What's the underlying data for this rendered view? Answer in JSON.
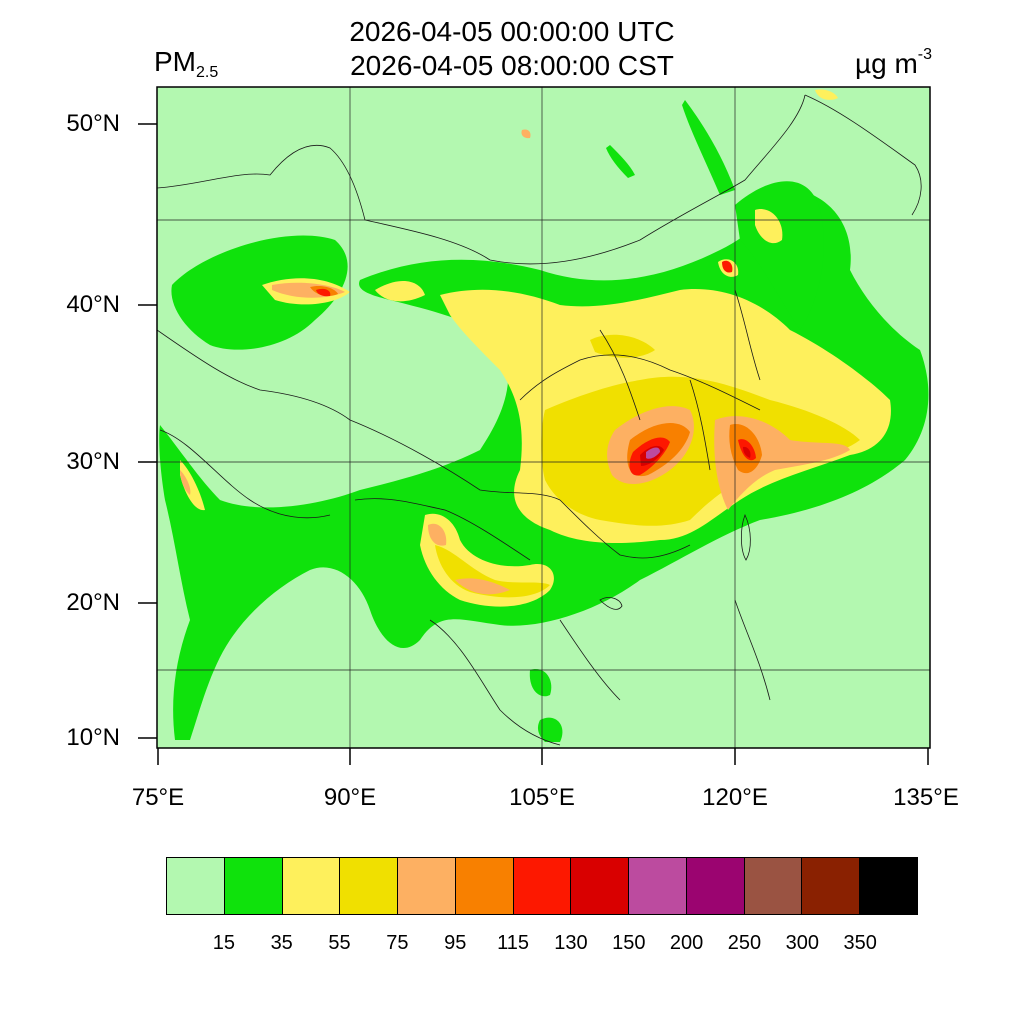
{
  "title": {
    "utc": "2026-04-05 00:00:00 UTC",
    "local": "2026-04-05 08:00:00 CST"
  },
  "variable": {
    "base": "PM",
    "sub": "2.5"
  },
  "units": {
    "base": "µg m",
    "sup": "-3"
  },
  "axes": {
    "lat_labels": [
      "50°N",
      "40°N",
      "30°N",
      "20°N",
      "10°N"
    ],
    "lon_labels": [
      "75°E",
      "90°E",
      "105°E",
      "120°E",
      "135°E"
    ]
  },
  "legend": {
    "colors": [
      "#b3f8b0",
      "#0fe20c",
      "#fef05c",
      "#f0e000",
      "#fdb062",
      "#f88000",
      "#fd1800",
      "#d90000",
      "#bc4b9f",
      "#9b0470",
      "#9a5342",
      "#8a2101",
      "#000000"
    ],
    "labels": [
      "15",
      "35",
      "55",
      "75",
      "95",
      "115",
      "130",
      "150",
      "200",
      "250",
      "300",
      "350"
    ]
  }
}
